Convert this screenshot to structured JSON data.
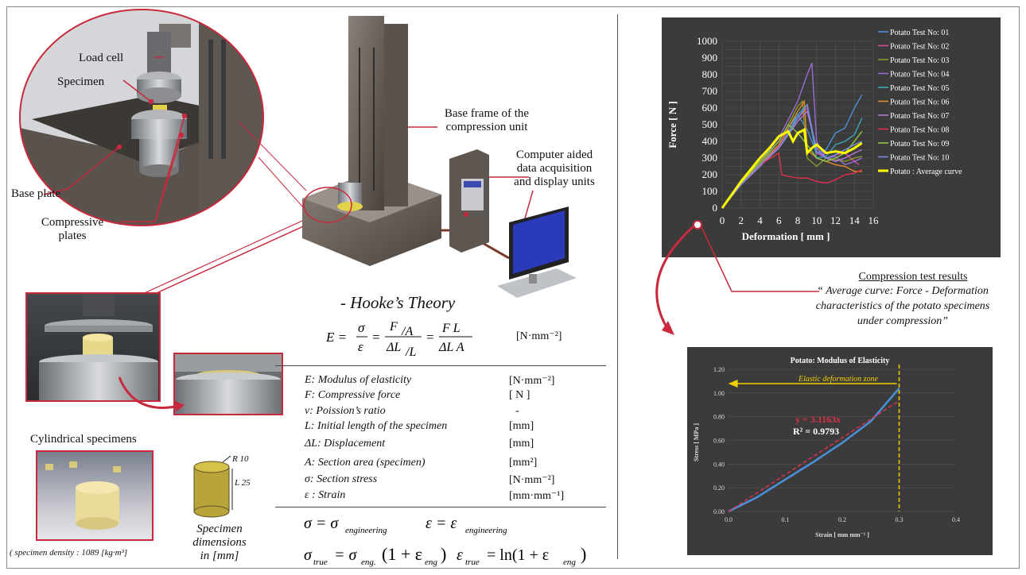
{
  "labels": {
    "load_cell": "Load cell",
    "specimen": "Specimen",
    "base_frame": "Base frame of the compression unit",
    "base_frame_l1": "Base frame of the",
    "base_frame_l2": "compression unit",
    "computer_l1": "Computer aided",
    "computer_l2": "data acquisition",
    "computer_l3": "and display units",
    "base_plate": "Base plate",
    "compressive_l1": "Compressive",
    "compressive_l2": "plates",
    "cylindrical": "Cylindrical specimens",
    "density": "( specimen density : 1089   [kg·m³]",
    "dims_l1": "Specimen",
    "dims_l2": "dimensions",
    "dims_l3": "in  [mm]",
    "dim_r": "R 10",
    "dim_l": "L  25"
  },
  "hooke": {
    "title": "- Hooke’s Theory",
    "unit": "[N·mm⁻²]",
    "params": [
      {
        "name": "E: Modulus of elasticity",
        "unit": "[N·mm⁻²]"
      },
      {
        "name": "F: Compressive force",
        "unit": "[ N ]"
      },
      {
        "name": "v: Poission’s ratio",
        "unit": "-"
      },
      {
        "name": "L: Initial length  of the specimen",
        "unit": "[mm]"
      },
      {
        "name": "ΔL: Displacement",
        "unit": "[mm]"
      },
      {
        "name": "A: Section area (specimen)",
        "unit": "[mm²]"
      },
      {
        "name": "σ: Section stress",
        "unit": "[N·mm⁻²]"
      },
      {
        "name": "ε : Strain",
        "unit": "[mm·mm⁻¹]"
      }
    ]
  },
  "results_caption": {
    "title": "Compression test results",
    "l1": "“ Average curve: Force - Deformation",
    "l2": "characteristics of the potato specimens",
    "l3": "under compression”"
  },
  "colors": {
    "accent": "#c8293c",
    "chart_bg": "#3b3b3b",
    "avg": "#ffff00"
  },
  "chart_data": [
    {
      "type": "line",
      "xlabel": "Deformation [ mm ]",
      "ylabel": "Force [ N ]",
      "xlim": [
        0,
        16
      ],
      "ylim": [
        0,
        1000
      ],
      "xticks": [
        "0",
        "2",
        "4",
        "6",
        "8",
        "10",
        "12",
        "14",
        "16"
      ],
      "yticks": [
        "0",
        "50",
        "100",
        "150",
        "200",
        "250",
        "300",
        "350",
        "400",
        "450",
        "500",
        "550",
        "600",
        "650",
        "700",
        "750",
        "800",
        "850",
        "900",
        "950",
        "1000"
      ],
      "legend_position": "right",
      "series": [
        {
          "name": "Potato Test No: 01",
          "color": "#4a90d9",
          "x": [
            0,
            2,
            4,
            6,
            7,
            8,
            9,
            10,
            11,
            12,
            13,
            14,
            14.8
          ],
          "y": [
            0,
            150,
            270,
            380,
            480,
            560,
            470,
            330,
            350,
            450,
            480,
            600,
            680
          ]
        },
        {
          "name": "Potato Test No: 02",
          "color": "#d64a9a",
          "x": [
            0,
            2,
            4,
            6,
            7,
            8,
            9,
            10,
            11,
            12,
            13,
            14,
            14.5
          ],
          "y": [
            0,
            140,
            260,
            370,
            460,
            540,
            600,
            330,
            300,
            320,
            330,
            280,
            260
          ]
        },
        {
          "name": "Potato Test No: 03",
          "color": "#8a9a2a",
          "x": [
            0,
            2,
            4,
            6,
            7,
            8,
            8.5,
            9,
            10,
            11,
            12,
            13,
            14,
            14.8
          ],
          "y": [
            0,
            150,
            270,
            400,
            500,
            610,
            640,
            300,
            250,
            300,
            290,
            280,
            300,
            310
          ]
        },
        {
          "name": "Potato Test No: 04",
          "color": "#9b6ad4",
          "x": [
            0,
            2,
            4,
            6,
            7,
            8,
            9,
            9.5,
            10,
            11,
            12,
            13,
            14,
            14.8
          ],
          "y": [
            0,
            160,
            280,
            420,
            530,
            640,
            800,
            870,
            400,
            300,
            310,
            260,
            280,
            300
          ]
        },
        {
          "name": "Potato Test No: 05",
          "color": "#3aa6b8",
          "x": [
            0,
            2,
            4,
            6,
            7,
            8,
            9,
            10,
            11,
            12,
            13,
            14,
            14.8
          ],
          "y": [
            0,
            140,
            260,
            360,
            450,
            560,
            620,
            300,
            310,
            380,
            400,
            440,
            540
          ]
        },
        {
          "name": "Potato Test No: 06",
          "color": "#e08a2a",
          "x": [
            0,
            2,
            4,
            6,
            7,
            8,
            8.7,
            9,
            10,
            11,
            12,
            13,
            14,
            14.8
          ],
          "y": [
            0,
            150,
            260,
            380,
            480,
            580,
            640,
            350,
            300,
            280,
            260,
            250,
            220,
            220
          ]
        },
        {
          "name": "Potato Test No: 07",
          "color": "#b07ad8",
          "x": [
            0,
            2,
            4,
            6,
            7,
            8,
            9,
            10,
            11,
            12,
            13,
            14,
            14.8
          ],
          "y": [
            0,
            140,
            250,
            360,
            440,
            520,
            580,
            360,
            300,
            280,
            300,
            330,
            350
          ]
        },
        {
          "name": "Potato Test No: 08",
          "color": "#e0304a",
          "x": [
            0,
            2,
            4,
            6,
            6.3,
            7,
            8,
            9,
            10,
            11,
            12,
            13,
            14,
            14.8
          ],
          "y": [
            0,
            140,
            260,
            330,
            200,
            190,
            180,
            180,
            160,
            150,
            170,
            200,
            210,
            230
          ]
        },
        {
          "name": "Potato Test No: 09",
          "color": "#8fc44a",
          "x": [
            0,
            2,
            4,
            6,
            7,
            8,
            9,
            10,
            11,
            12,
            13,
            14,
            14.8
          ],
          "y": [
            0,
            150,
            280,
            400,
            500,
            450,
            380,
            300,
            280,
            300,
            330,
            400,
            460
          ]
        },
        {
          "name": "Potato Test No: 10",
          "color": "#7a8ae0",
          "x": [
            0,
            2,
            4,
            6,
            7,
            8,
            9,
            10,
            11,
            12,
            13,
            14,
            14.8
          ],
          "y": [
            0,
            140,
            260,
            360,
            440,
            540,
            620,
            340,
            300,
            320,
            350,
            380,
            400
          ]
        },
        {
          "name": "Potato : Average curve",
          "color": "#ffff00",
          "x": [
            0,
            1,
            2,
            3,
            4,
            5,
            6,
            7,
            7.5,
            8,
            8.7,
            9,
            9.5,
            10,
            11,
            12,
            13,
            14,
            14.8
          ],
          "y": [
            0,
            80,
            160,
            230,
            300,
            360,
            430,
            460,
            400,
            450,
            470,
            330,
            360,
            380,
            330,
            340,
            330,
            360,
            390
          ]
        }
      ]
    },
    {
      "type": "scatter",
      "title": "Potato: Modulus of Elasticity",
      "xlabel": "Strain [ mm mm⁻¹ ]",
      "ylabel": "Stress [ MPa ]",
      "xlim": [
        0,
        0.4
      ],
      "ylim": [
        0,
        1.2
      ],
      "xticks": [
        "0.0",
        "0.1",
        "0.2",
        "0.3",
        "0.4"
      ],
      "yticks": [
        "0.00",
        "0.20",
        "0.40",
        "0.60",
        "0.80",
        "1.00",
        "1.20"
      ],
      "series": [
        {
          "name": "",
          "color": "#4a90d9",
          "x": [
            0,
            0.05,
            0.1,
            0.15,
            0.2,
            0.25,
            0.3
          ],
          "y": [
            0,
            0.12,
            0.27,
            0.42,
            0.58,
            0.76,
            1.04
          ]
        }
      ],
      "trendline": {
        "equation": "y = 3.1163x",
        "r2": "R² = 0.9793",
        "slope": 3.1163
      },
      "annotation": "Elastic deformation zone",
      "marker_x": 0.3
    }
  ]
}
